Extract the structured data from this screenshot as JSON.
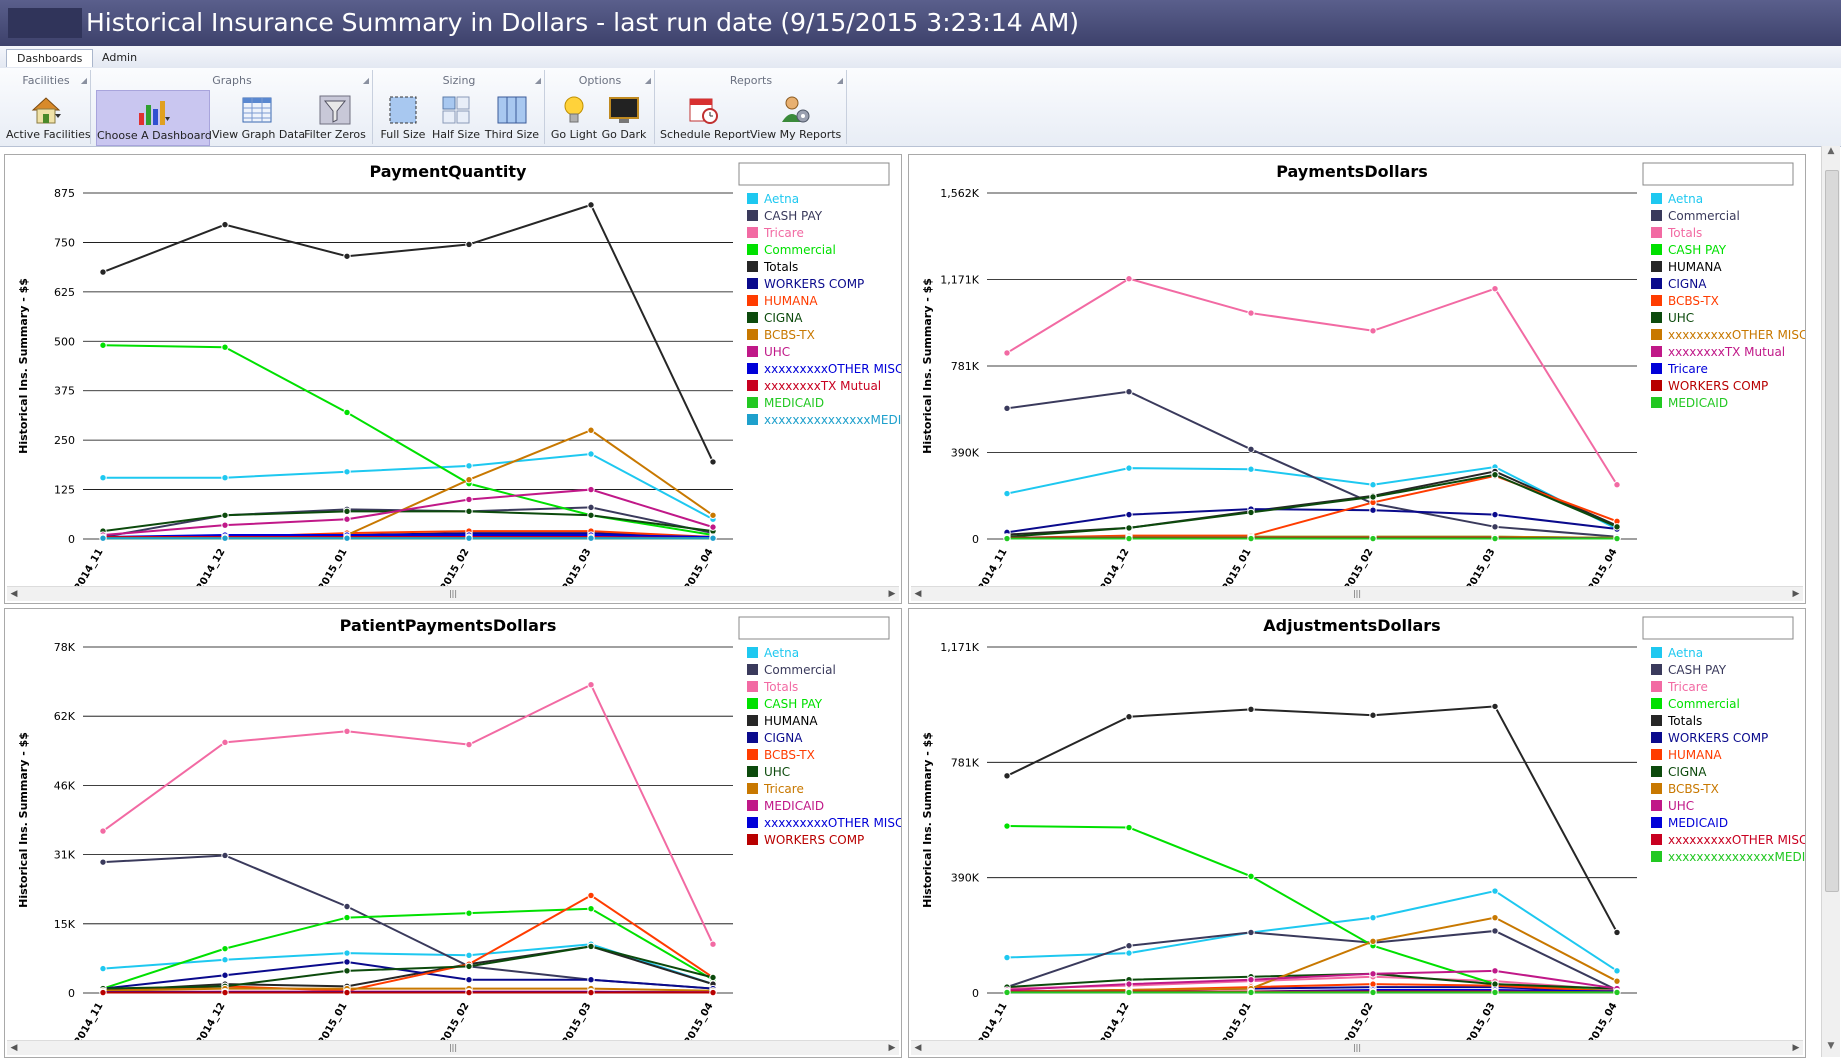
{
  "window": {
    "title": "Historical Insurance Summary in Dollars - last run date (9/15/2015 3:23:14 AM)"
  },
  "tabs": [
    {
      "label": "Dashboards"
    },
    {
      "label": "Admin"
    }
  ],
  "ribbon": {
    "groups": [
      {
        "label": "Facilities"
      },
      {
        "label": "Graphs"
      },
      {
        "label": "Sizing"
      },
      {
        "label": "Options"
      },
      {
        "label": "Reports"
      }
    ],
    "buttons": [
      {
        "label": "Active Facilities",
        "icon": "house-icon"
      },
      {
        "label": "Choose A Dashboard",
        "icon": "bar-chart-icon",
        "selected": true
      },
      {
        "label": "View Graph Data",
        "icon": "grid-table-icon"
      },
      {
        "label": "Filter Zeros",
        "icon": "funnel-icon"
      },
      {
        "label": "Full Size",
        "icon": "full-size-icon"
      },
      {
        "label": "Half Size",
        "icon": "half-size-icon"
      },
      {
        "label": "Third Size",
        "icon": "third-size-icon"
      },
      {
        "label": "Go Light",
        "icon": "lightbulb-icon"
      },
      {
        "label": "Go Dark",
        "icon": "monitor-dark-icon"
      },
      {
        "label": "Schedule Report",
        "icon": "calendar-clock-icon"
      },
      {
        "label": "View My Reports",
        "icon": "user-gear-icon"
      }
    ]
  },
  "colors": {
    "Aetna": "#1ec8f0",
    "CASH PAY": "#00e000",
    "Commercial": "#3a3a5c",
    "Tricare": "#f26aa3",
    "Totals": "#262626",
    "WORKERS COMP": "#b80000",
    "HUMANA": "#ff3c00",
    "CIGNA": "#0a0a8c",
    "BCBS-TX": "#c87800",
    "UHC": "#0c4a0c",
    "xxxxxxxxxOTHER MISC": "#0000d8",
    "xxxxxxxxTX Mutual": "#c80020",
    "MEDICAID": "#22c822",
    "xxxxxxxxxxxxxxxMEDICARE": "#1ea0cc"
  },
  "chart_data": [
    {
      "type": "line",
      "title": "PaymentQuantity",
      "ylabel": "Historical Ins. Summary - $$",
      "x": [
        "2014_11",
        "2014_12",
        "2015_01",
        "2015_02",
        "2015_03",
        "2015_04"
      ],
      "yticks": [
        "0",
        "125",
        "250",
        "375",
        "500",
        "625",
        "750",
        "875"
      ],
      "ylim": [
        0,
        875
      ],
      "legend_position": "right",
      "series": [
        {
          "name": "Aetna",
          "color": "#1ec8f0",
          "values": [
            155,
            155,
            170,
            185,
            215,
            50
          ]
        },
        {
          "name": "CASH PAY",
          "color": "#3a3a5c",
          "values": [
            5,
            60,
            75,
            70,
            80,
            15
          ]
        },
        {
          "name": "Tricare",
          "color": "#f26aa3",
          "values": [
            5,
            5,
            10,
            10,
            10,
            2
          ]
        },
        {
          "name": "Commercial",
          "color": "#00e000",
          "values": [
            490,
            485,
            320,
            140,
            60,
            10
          ]
        },
        {
          "name": "Totals",
          "color": "#262626",
          "values": [
            675,
            795,
            715,
            745,
            845,
            195
          ]
        },
        {
          "name": "WORKERS COMP",
          "color": "#0a0a8c",
          "values": [
            5,
            5,
            10,
            15,
            15,
            5
          ]
        },
        {
          "name": "HUMANA",
          "color": "#ff3c00",
          "values": [
            5,
            5,
            15,
            20,
            20,
            5
          ]
        },
        {
          "name": "CIGNA",
          "color": "#0c4a0c",
          "values": [
            20,
            60,
            70,
            70,
            60,
            20
          ]
        },
        {
          "name": "BCBS-TX",
          "color": "#c87800",
          "values": [
            5,
            5,
            10,
            150,
            275,
            60
          ]
        },
        {
          "name": "UHC",
          "color": "#c01888",
          "values": [
            10,
            35,
            50,
            100,
            125,
            30
          ]
        },
        {
          "name": "xxxxxxxxxOTHER MISC",
          "color": "#0000d8",
          "values": [
            5,
            10,
            10,
            10,
            10,
            5
          ]
        },
        {
          "name": "xxxxxxxxTX Mutual",
          "color": "#c80020",
          "values": [
            5,
            5,
            5,
            5,
            5,
            2
          ]
        },
        {
          "name": "MEDICAID",
          "color": "#22c822",
          "values": [
            2,
            2,
            2,
            2,
            2,
            2
          ]
        },
        {
          "name": "xxxxxxxxxxxxxxxMEDICARE",
          "color": "#1ea0cc",
          "values": [
            2,
            2,
            2,
            2,
            2,
            2
          ]
        }
      ]
    },
    {
      "type": "line",
      "title": "PaymentsDollars",
      "ylabel": "Historical Ins. Summary - $$",
      "x": [
        "2014_11",
        "2014_12",
        "2015_01",
        "2015_02",
        "2015_03",
        "2015_04"
      ],
      "yticks": [
        "0",
        "390K",
        "781K",
        "1,171K",
        "1,562K"
      ],
      "ylim": [
        0,
        1562000
      ],
      "legend_position": "right",
      "series": [
        {
          "name": "Aetna",
          "color": "#1ec8f0",
          "values": [
            205000,
            320000,
            315000,
            245000,
            325000,
            45000
          ]
        },
        {
          "name": "Commercial",
          "color": "#3a3a5c",
          "values": [
            590000,
            665000,
            405000,
            160000,
            55000,
            10000
          ]
        },
        {
          "name": "Totals",
          "color": "#f26aa3",
          "values": [
            840000,
            1175000,
            1020000,
            940000,
            1130000,
            245000
          ]
        },
        {
          "name": "CASH PAY",
          "color": "#00e000",
          "values": [
            5000,
            10000,
            10000,
            10000,
            10000,
            5000
          ]
        },
        {
          "name": "HUMANA",
          "color": "#262626",
          "values": [
            20000,
            50000,
            125000,
            195000,
            305000,
            60000
          ]
        },
        {
          "name": "CIGNA",
          "color": "#0a0a8c",
          "values": [
            30000,
            110000,
            135000,
            130000,
            110000,
            45000
          ]
        },
        {
          "name": "BCBS-TX",
          "color": "#ff3c00",
          "values": [
            5000,
            15000,
            15000,
            165000,
            285000,
            80000
          ]
        },
        {
          "name": "UHC",
          "color": "#0c4a0c",
          "values": [
            10000,
            50000,
            120000,
            190000,
            290000,
            55000
          ]
        },
        {
          "name": "xxxxxxxxxOTHER MISC",
          "color": "#c87800",
          "values": [
            5000,
            10000,
            10000,
            10000,
            10000,
            5000
          ]
        },
        {
          "name": "xxxxxxxxTX Mutual",
          "color": "#c01888",
          "values": [
            5000,
            5000,
            5000,
            5000,
            5000,
            2000
          ]
        },
        {
          "name": "Tricare",
          "color": "#0000d8",
          "values": [
            5000,
            5000,
            5000,
            5000,
            5000,
            2000
          ]
        },
        {
          "name": "WORKERS COMP",
          "color": "#b80000",
          "values": [
            5000,
            5000,
            5000,
            5000,
            5000,
            2000
          ]
        },
        {
          "name": "MEDICAID",
          "color": "#22c822",
          "values": [
            2000,
            2000,
            2000,
            2000,
            2000,
            2000
          ]
        }
      ]
    },
    {
      "type": "line",
      "title": "PatientPaymentsDollars",
      "ylabel": "Historical Ins. Summary - $$",
      "x": [
        "2014_11",
        "2014_12",
        "2015_01",
        "2015_02",
        "2015_03",
        "2015_04"
      ],
      "yticks": [
        "0",
        "15K",
        "31K",
        "46K",
        "62K",
        "78K"
      ],
      "ylim": [
        0,
        78000
      ],
      "legend_position": "right",
      "series": [
        {
          "name": "Aetna",
          "color": "#1ec8f0",
          "values": [
            5500,
            7500,
            9000,
            8500,
            11000,
            2000
          ]
        },
        {
          "name": "Commercial",
          "color": "#3a3a5c",
          "values": [
            29500,
            31000,
            19500,
            6000,
            3000,
            1000
          ]
        },
        {
          "name": "Totals",
          "color": "#f26aa3",
          "values": [
            36500,
            56500,
            59000,
            56000,
            69500,
            11000
          ]
        },
        {
          "name": "CASH PAY",
          "color": "#00e000",
          "values": [
            1000,
            10000,
            17000,
            18000,
            19000,
            3000
          ]
        },
        {
          "name": "HUMANA",
          "color": "#262626",
          "values": [
            500,
            2000,
            1500,
            6500,
            10500,
            2000
          ]
        },
        {
          "name": "CIGNA",
          "color": "#0a0a8c",
          "values": [
            1000,
            4000,
            7000,
            3000,
            3000,
            1000
          ]
        },
        {
          "name": "BCBS-TX",
          "color": "#ff3c00",
          "values": [
            500,
            1500,
            500,
            6500,
            22000,
            3500
          ]
        },
        {
          "name": "UHC",
          "color": "#0c4a0c",
          "values": [
            1000,
            1500,
            5000,
            6000,
            10500,
            3500
          ]
        },
        {
          "name": "Tricare",
          "color": "#c87800",
          "values": [
            500,
            1000,
            1000,
            1000,
            1000,
            500
          ]
        },
        {
          "name": "MEDICAID",
          "color": "#c01888",
          "values": [
            200,
            300,
            300,
            300,
            300,
            200
          ]
        },
        {
          "name": "xxxxxxxxxOTHER MISC",
          "color": "#0000d8",
          "values": [
            200,
            200,
            200,
            200,
            200,
            100
          ]
        },
        {
          "name": "WORKERS COMP",
          "color": "#b80000",
          "values": [
            100,
            100,
            100,
            100,
            100,
            100
          ]
        }
      ]
    },
    {
      "type": "line",
      "title": "AdjustmentsDollars",
      "ylabel": "Historical Ins. Summary - $$",
      "x": [
        "2014_11",
        "2014_12",
        "2015_01",
        "2015_02",
        "2015_03",
        "2015_04"
      ],
      "yticks": [
        "0",
        "390K",
        "781K",
        "1,171K"
      ],
      "ylim": [
        0,
        1171000
      ],
      "legend_position": "right",
      "series": [
        {
          "name": "Aetna",
          "color": "#1ec8f0",
          "values": [
            120000,
            135000,
            205000,
            255000,
            345000,
            75000
          ]
        },
        {
          "name": "CASH PAY",
          "color": "#3a3a5c",
          "values": [
            20000,
            160000,
            205000,
            170000,
            210000,
            10000
          ]
        },
        {
          "name": "Tricare",
          "color": "#f26aa3",
          "values": [
            15000,
            25000,
            40000,
            55000,
            40000,
            10000
          ]
        },
        {
          "name": "Commercial",
          "color": "#00e000",
          "values": [
            565000,
            560000,
            395000,
            160000,
            30000,
            5000
          ]
        },
        {
          "name": "Totals",
          "color": "#262626",
          "values": [
            735000,
            935000,
            960000,
            940000,
            970000,
            205000
          ]
        },
        {
          "name": "WORKERS COMP",
          "color": "#0a0a8c",
          "values": [
            5000,
            10000,
            15000,
            20000,
            20000,
            5000
          ]
        },
        {
          "name": "HUMANA",
          "color": "#ff3c00",
          "values": [
            5000,
            10000,
            20000,
            30000,
            25000,
            5000
          ]
        },
        {
          "name": "CIGNA",
          "color": "#0c4a0c",
          "values": [
            20000,
            45000,
            55000,
            65000,
            30000,
            15000
          ]
        },
        {
          "name": "BCBS-TX",
          "color": "#c87800",
          "values": [
            5000,
            10000,
            15000,
            175000,
            255000,
            40000
          ]
        },
        {
          "name": "UHC",
          "color": "#c01888",
          "values": [
            10000,
            30000,
            45000,
            65000,
            75000,
            15000
          ]
        },
        {
          "name": "MEDICAID",
          "color": "#0000d8",
          "values": [
            5000,
            5000,
            5000,
            10000,
            10000,
            5000
          ]
        },
        {
          "name": "xxxxxxxxxOTHER MISC",
          "color": "#c80020",
          "values": [
            5000,
            5000,
            5000,
            5000,
            5000,
            2000
          ]
        },
        {
          "name": "xxxxxxxxxxxxxxxMEDICARE",
          "color": "#22c822",
          "values": [
            2000,
            2000,
            2000,
            2000,
            2000,
            2000
          ]
        }
      ]
    }
  ]
}
